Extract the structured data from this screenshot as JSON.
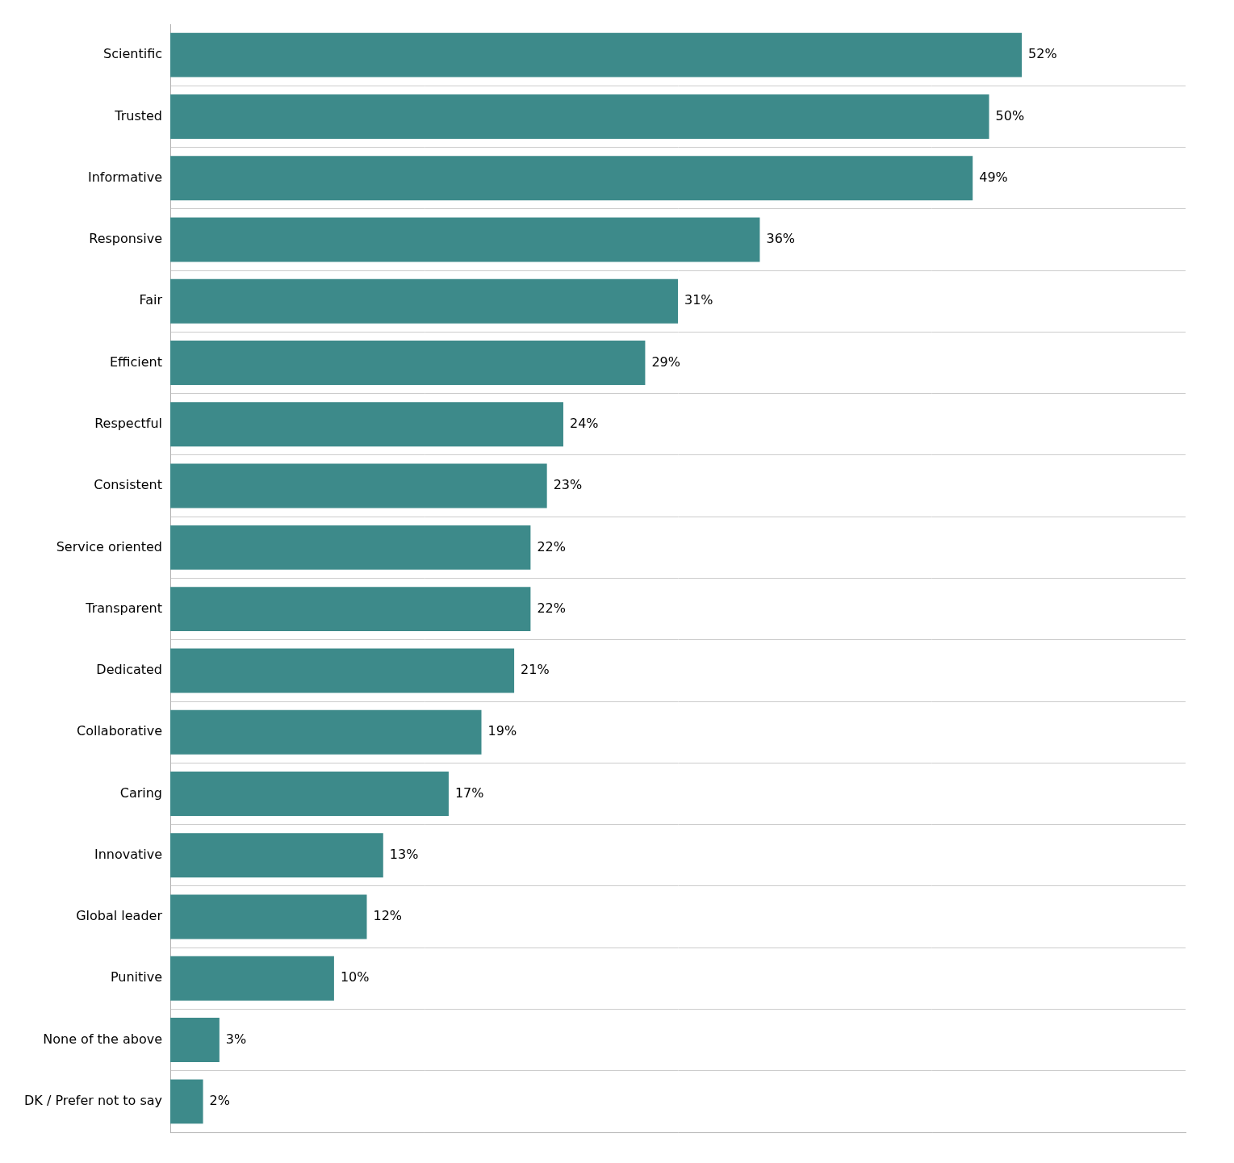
{
  "chart_data": {
    "type": "bar",
    "orientation": "horizontal",
    "categories": [
      "Scientific",
      "Trusted",
      "Informative",
      "Responsive",
      "Fair",
      "Efficient",
      "Respectful",
      "Consistent",
      "Service oriented",
      "Transparent",
      "Dedicated",
      "Collaborative",
      "Caring",
      "Innovative",
      "Global leader",
      "Punitive",
      "None of the above",
      "DK / Prefer not to say"
    ],
    "values": [
      52,
      50,
      49,
      36,
      31,
      29,
      24,
      23,
      22,
      22,
      21,
      19,
      17,
      13,
      12,
      10,
      3,
      2
    ],
    "value_labels": [
      "52%",
      "50%",
      "49%",
      "36%",
      "31%",
      "29%",
      "24%",
      "23%",
      "22%",
      "22%",
      "21%",
      "19%",
      "17%",
      "13%",
      "12%",
      "10%",
      "3%",
      "2%"
    ],
    "color": "#3d8a8a",
    "xlim": [
      0,
      62
    ],
    "data_labels": true,
    "tick_labels": "y",
    "grid": true
  }
}
